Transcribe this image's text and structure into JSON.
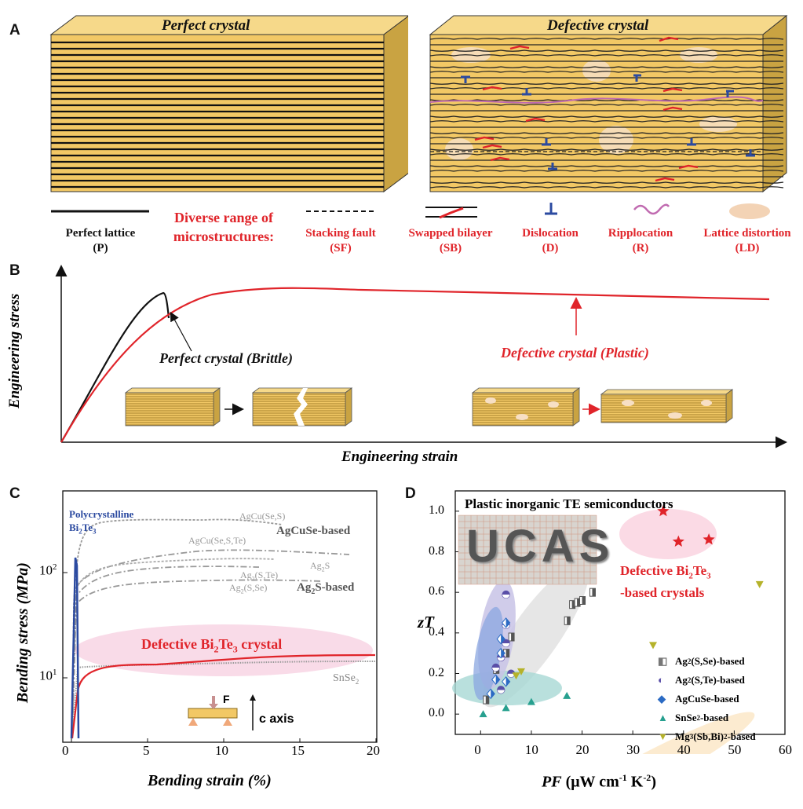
{
  "panels": {
    "a": "A",
    "b": "B",
    "c": "C",
    "d": "D"
  },
  "panel_a": {
    "left_title": "Perfect crystal",
    "right_title": "Defective crystal",
    "diverse_label_1": "Diverse range of",
    "diverse_label_2": "microstructures:",
    "legend": [
      {
        "line1": "Perfect lattice",
        "line2": "(P)",
        "icon": "solid-line-icon",
        "color": "#111111"
      },
      {
        "line1": "Stacking fault",
        "line2": "(SF)",
        "icon": "dashed-line-icon",
        "color": "#e0242a"
      },
      {
        "line1": "Swapped bilayer",
        "line2": "(SB)",
        "icon": "swapped-bilayer-icon",
        "color": "#e0242a"
      },
      {
        "line1": "Dislocation",
        "line2": "(D)",
        "icon": "dislocation-icon",
        "color": "#e0242a"
      },
      {
        "line1": "Ripplocation",
        "line2": "(R)",
        "icon": "ripplocation-icon",
        "color": "#e0242a"
      },
      {
        "line1": "Lattice distortion",
        "line2": "(LD)",
        "icon": "lattice-distortion-icon",
        "color": "#e0242a"
      }
    ]
  },
  "panel_b": {
    "ylabel": "Engineering stress",
    "xlabel": "Engineering strain",
    "perfect_label": "Perfect crystal  (Brittle)",
    "defective_label": "Defective crystal  (Plastic)"
  },
  "panel_c": {
    "ylabel": "Bending stress (MPa)",
    "xlabel": "Bending strain (%)",
    "xticks": [
      "0",
      "5",
      "10",
      "15",
      "20"
    ],
    "ytick_10": "10",
    "ytick_100": "10",
    "ytick_exp": "1",
    "ytick_exp2": "2",
    "labels": {
      "poly1": "Polycrystalline",
      "poly2": "Bi",
      "poly2b": "2",
      "poly2c": "Te",
      "poly2d": "3",
      "agcu_s_se": "AgCu(Se,S)",
      "agcuse_based": "AgCuSe-based",
      "agcu_se_s_te": "AgCu(Se,S,Te)",
      "ag2s_a": "Ag",
      "ag2s_b": "2",
      "ag2s_c": "S",
      "ag2s_te": "(S,Te)",
      "ag2s_se": "(S,Se)",
      "ag2s_based": "S-based",
      "def_1": "Defective Bi",
      "def_2": "2",
      "def_3": "Te",
      "def_4": "3",
      "def_5": " crystal",
      "snse_1": "SnSe",
      "snse_2": "2",
      "force": "F",
      "caxis": "c axis"
    }
  },
  "panel_d": {
    "title": "Plastic inorganic TE semiconductors",
    "photo_text": "UCAS",
    "ylabel": "zT",
    "xlabel_1": "PF",
    "xlabel_2": " (μW cm",
    "xlabel_3": "-1",
    "xlabel_4": " K",
    "xlabel_5": "-2",
    "xlabel_6": ")",
    "xticks": [
      "0",
      "10",
      "20",
      "30",
      "40",
      "50",
      "60"
    ],
    "yticks": [
      "0.0",
      "0.2",
      "0.4",
      "0.6",
      "0.8",
      "1.0"
    ],
    "defective_1": "Defective Bi",
    "defective_2": "2",
    "defective_3": "Te",
    "defective_4": "3",
    "defective_5": "-based crystals",
    "legend": [
      {
        "a": "Ag",
        "b": "2",
        "c": "(S,Se)-based",
        "color": "#777777"
      },
      {
        "a": "Ag",
        "b": "2",
        "c": "(S,Te)-based",
        "color": "#5a4fa8"
      },
      {
        "a": "AgCuSe-based",
        "b": "",
        "c": "",
        "color": "#2b6bc4"
      },
      {
        "a": "SnSe",
        "b": "2",
        "c": "-based",
        "color": "#27a08f"
      },
      {
        "a": "Mg",
        "b": "3",
        "c": "(Sb,Bi)",
        "d": "2",
        "e": "-based",
        "color": "#b5b22a"
      }
    ]
  },
  "chart_data": [
    {
      "type": "scatter",
      "title": "",
      "xlabel": "PF (μW cm-1 K-2)",
      "ylabel": "zT",
      "xlim": [
        -5,
        60
      ],
      "ylim": [
        -0.1,
        1.1
      ],
      "series": [
        {
          "name": "Ag2(S,Se)-based",
          "points": [
            [
              1,
              0.07
            ],
            [
              3,
              0.22
            ],
            [
              5,
              0.3
            ],
            [
              6,
              0.38
            ],
            [
              17,
              0.46
            ],
            [
              18,
              0.54
            ],
            [
              19,
              0.55
            ],
            [
              20,
              0.56
            ],
            [
              22,
              0.6
            ]
          ]
        },
        {
          "name": "Ag2(S,Te)-based",
          "points": [
            [
              3,
              0.23
            ],
            [
              4,
              0.28
            ],
            [
              5,
              0.35
            ],
            [
              5,
              0.44
            ],
            [
              5,
              0.59
            ],
            [
              6,
              0.2
            ],
            [
              4,
              0.12
            ]
          ]
        },
        {
          "name": "AgCuSe-based",
          "points": [
            [
              2,
              0.1
            ],
            [
              3,
              0.17
            ],
            [
              4,
              0.3
            ],
            [
              4,
              0.37
            ],
            [
              5,
              0.45
            ],
            [
              5,
              0.16
            ]
          ]
        },
        {
          "name": "SnSe2-based",
          "points": [
            [
              0.5,
              0.0
            ],
            [
              5,
              0.03
            ],
            [
              10,
              0.06
            ],
            [
              17,
              0.09
            ]
          ]
        },
        {
          "name": "Mg3(Sb,Bi)2-based",
          "points": [
            [
              7,
              0.19
            ],
            [
              8,
              0.21
            ],
            [
              34,
              0.34
            ],
            [
              55,
              0.64
            ]
          ]
        },
        {
          "name": "Defective Bi2Te3-based crystals",
          "points": [
            [
              36,
              1.0
            ],
            [
              39,
              0.85
            ],
            [
              45,
              0.86
            ]
          ]
        }
      ]
    }
  ]
}
